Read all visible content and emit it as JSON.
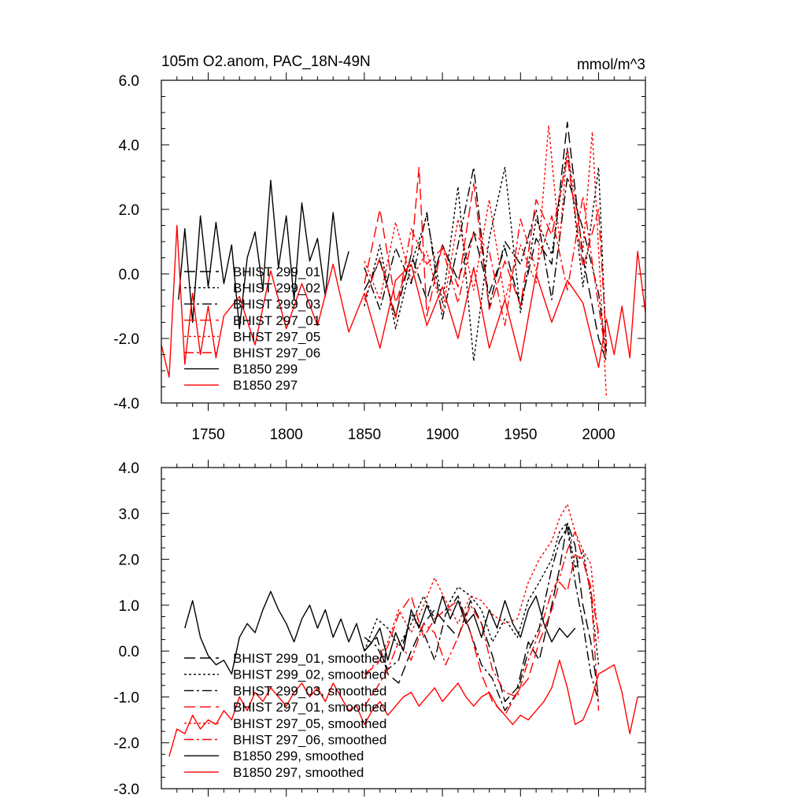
{
  "chart_data": [
    {
      "type": "line",
      "title": "105m O2.anom, PAC_18N-49N",
      "units": "mmol/m^3",
      "xlim": [
        1720,
        2030
      ],
      "ylim": [
        -4.0,
        6.0
      ],
      "xticks": [
        1750,
        1800,
        1850,
        1900,
        1950,
        2000
      ],
      "xtick_labels": [
        "1750",
        "1800",
        "1850",
        "1900",
        "1950",
        "2000"
      ],
      "yticks": [
        -4.0,
        -2.0,
        0.0,
        2.0,
        4.0,
        6.0
      ],
      "ytick_labels": [
        "-4.0",
        "-2.0",
        "0.0",
        "2.0",
        "4.0",
        "6.0"
      ],
      "legend_position": "center-left",
      "series": [
        {
          "name": "BHIST 299_01",
          "color": "#000000",
          "dash": "longdash",
          "x": [
            1850,
            1860,
            1870,
            1880,
            1890,
            1900,
            1910,
            1920,
            1930,
            1940,
            1950,
            1960,
            1970,
            1980,
            1990,
            2000,
            2005
          ],
          "values": [
            -0.5,
            0.4,
            -1.3,
            0.6,
            -0.8,
            0.9,
            -0.2,
            1.3,
            -0.6,
            0.8,
            -1.0,
            1.1,
            0.3,
            4.7,
            0.5,
            -2.0,
            -2.7
          ]
        },
        {
          "name": "BHIST 299_02",
          "color": "#000000",
          "dash": "dot",
          "x": [
            1850,
            1860,
            1870,
            1880,
            1890,
            1900,
            1910,
            1920,
            1930,
            1940,
            1950,
            1960,
            1970,
            1980,
            1990,
            2000,
            2005
          ],
          "values": [
            -1.0,
            0.9,
            -1.7,
            0.3,
            1.8,
            -0.9,
            2.7,
            -2.7,
            1.1,
            3.3,
            -1.2,
            1.7,
            0.6,
            3.9,
            -0.4,
            3.3,
            -2.4
          ]
        },
        {
          "name": "BHIST 299_03",
          "color": "#000000",
          "dash": "dashdot",
          "x": [
            1850,
            1860,
            1870,
            1880,
            1890,
            1900,
            1910,
            1920,
            1930,
            1940,
            1950,
            1960,
            1970,
            1980,
            1990,
            2000,
            2005
          ],
          "values": [
            0.2,
            -1.1,
            0.8,
            -0.3,
            1.9,
            -1.4,
            0.9,
            3.3,
            -1.0,
            1.0,
            0.3,
            2.0,
            -0.8,
            3.0,
            1.4,
            -0.6,
            -2.5
          ]
        },
        {
          "name": "BHIST 297_01",
          "color": "#ff0000",
          "dash": "longdash",
          "x": [
            1850,
            1860,
            1870,
            1880,
            1885,
            1890,
            1900,
            1910,
            1920,
            1930,
            1940,
            1950,
            1960,
            1970,
            1980,
            1990,
            2000,
            2005
          ],
          "values": [
            -0.3,
            2.0,
            -0.9,
            0.5,
            3.3,
            -1.3,
            0.9,
            -0.4,
            2.8,
            -1.1,
            0.4,
            -1.0,
            2.3,
            1.2,
            3.6,
            0.2,
            2.0,
            -2.2
          ]
        },
        {
          "name": "BHIST 297_05",
          "color": "#ff0000",
          "dash": "dot",
          "x": [
            1850,
            1860,
            1870,
            1880,
            1890,
            1900,
            1910,
            1920,
            1930,
            1940,
            1950,
            1960,
            1968,
            1975,
            1980,
            1990,
            1996,
            2005
          ],
          "values": [
            0.4,
            -0.8,
            1.6,
            -0.2,
            0.7,
            -1.2,
            1.7,
            -0.5,
            2.3,
            -0.8,
            0.9,
            -0.3,
            4.6,
            1.0,
            3.9,
            0.7,
            4.4,
            -3.8
          ]
        },
        {
          "name": "BHIST 297_06",
          "color": "#ff0000",
          "dash": "dashdot",
          "x": [
            1850,
            1860,
            1870,
            1880,
            1890,
            1900,
            1910,
            1920,
            1930,
            1940,
            1950,
            1960,
            1970,
            1980,
            1990,
            2000,
            2005
          ],
          "values": [
            -0.8,
            0.5,
            -1.4,
            1.4,
            0.3,
            0.8,
            -0.9,
            1.3,
            0.7,
            -1.6,
            1.7,
            0.1,
            1.8,
            -0.5,
            2.4,
            -1.0,
            -2.6
          ]
        },
        {
          "name": "B1850 299",
          "color": "#000000",
          "dash": "solid",
          "x": [
            1731,
            1735,
            1740,
            1745,
            1750,
            1755,
            1760,
            1765,
            1770,
            1775,
            1780,
            1785,
            1790,
            1795,
            1800,
            1805,
            1810,
            1815,
            1820,
            1825,
            1830,
            1835,
            1840
          ],
          "values": [
            -0.8,
            1.4,
            -1.5,
            1.8,
            -0.4,
            1.6,
            -0.3,
            0.9,
            -1.7,
            0.5,
            1.3,
            -0.5,
            2.9,
            0.2,
            1.8,
            -0.8,
            2.2,
            0.4,
            1.1,
            -0.7,
            1.9,
            -0.2,
            0.7
          ]
        },
        {
          "name": "B1850 297",
          "color": "#ff0000",
          "dash": "solid",
          "x": [
            1720,
            1725,
            1730,
            1735,
            1740,
            1745,
            1750,
            1755,
            1760,
            1770,
            1780,
            1790,
            1800,
            1810,
            1820,
            1830,
            1840,
            1850,
            1860,
            1870,
            1880,
            1890,
            1900,
            1910,
            1920,
            1930,
            1940,
            1950,
            1960,
            1970,
            1980,
            1990,
            2000,
            2005,
            2010,
            2015,
            2020,
            2025,
            2030
          ],
          "values": [
            -2.2,
            -3.2,
            1.5,
            -2.8,
            -0.6,
            -2.5,
            -1.0,
            -2.6,
            -1.3,
            -0.7,
            -2.2,
            0.1,
            -1.7,
            -0.3,
            -1.6,
            0.3,
            -1.8,
            -0.6,
            -2.3,
            -0.2,
            0.3,
            -1.6,
            -0.4,
            -2.0,
            0.2,
            -2.3,
            -0.8,
            -2.7,
            0.0,
            -1.5,
            -0.2,
            -0.9,
            -2.9,
            -1.4,
            -2.5,
            -1.0,
            -2.6,
            0.7,
            -1.2
          ]
        }
      ]
    },
    {
      "type": "line",
      "title": "",
      "xlim": [
        1720,
        2030
      ],
      "ylim": [
        -3.0,
        4.0
      ],
      "yticks": [
        -3.0,
        -2.0,
        -1.0,
        0.0,
        1.0,
        2.0,
        3.0,
        4.0
      ],
      "ytick_labels": [
        "-3.0",
        "-2.0",
        "-1.0",
        "0.0",
        "1.0",
        "2.0",
        "3.0",
        "4.0"
      ],
      "xticks": [
        1750,
        1800,
        1850,
        1900,
        1950,
        2000
      ],
      "legend_position": "bottom-left",
      "series": [
        {
          "name": "BHIST 299_01, smoothed",
          "color": "#000000",
          "dash": "longdash",
          "x": [
            1850,
            1858,
            1865,
            1872,
            1880,
            1888,
            1895,
            1902,
            1910,
            1918,
            1925,
            1932,
            1940,
            1948,
            1955,
            1962,
            1970,
            1975,
            1980,
            1985,
            1990,
            1995,
            2000
          ],
          "values": [
            0.0,
            0.3,
            -0.5,
            -0.7,
            0.0,
            0.6,
            0.9,
            0.6,
            0.3,
            1.1,
            0.6,
            -0.1,
            -1.1,
            -0.8,
            0.2,
            -0.2,
            1.0,
            1.8,
            2.8,
            2.3,
            1.0,
            0.2,
            -1.0
          ]
        },
        {
          "name": "BHIST 299_02, smoothed",
          "color": "#000000",
          "dash": "dot",
          "x": [
            1850,
            1858,
            1865,
            1872,
            1880,
            1888,
            1895,
            1902,
            1910,
            1918,
            1925,
            1932,
            1940,
            1948,
            1955,
            1962,
            1970,
            1975,
            1980,
            1985,
            1990,
            1995,
            2000
          ],
          "values": [
            0.0,
            0.7,
            0.5,
            0.1,
            0.6,
            1.2,
            0.7,
            0.9,
            1.4,
            1.2,
            0.9,
            0.2,
            0.7,
            0.3,
            1.1,
            1.5,
            2.0,
            2.6,
            2.8,
            1.8,
            2.2,
            1.2,
            -0.3
          ]
        },
        {
          "name": "BHIST 299_03, smoothed",
          "color": "#000000",
          "dash": "dashdot",
          "x": [
            1850,
            1858,
            1865,
            1872,
            1880,
            1888,
            1895,
            1902,
            1910,
            1918,
            1925,
            1932,
            1940,
            1948,
            1955,
            1962,
            1970,
            1975,
            1980,
            1985,
            1990,
            1995,
            2000
          ],
          "values": [
            0.3,
            0.1,
            -0.4,
            -0.2,
            0.8,
            0.4,
            -0.2,
            0.8,
            1.2,
            0.4,
            -0.3,
            -0.6,
            -1.3,
            -0.9,
            0.0,
            0.5,
            1.8,
            2.4,
            2.7,
            1.5,
            0.6,
            -0.5,
            -1.1
          ]
        },
        {
          "name": "BHIST 297_01, smoothed",
          "color": "#ff0000",
          "dash": "longdash",
          "x": [
            1850,
            1858,
            1865,
            1872,
            1880,
            1888,
            1895,
            1902,
            1910,
            1918,
            1925,
            1932,
            1940,
            1948,
            1955,
            1962,
            1970,
            1975,
            1980,
            1985,
            1990,
            1995,
            2000
          ],
          "values": [
            -0.5,
            -0.3,
            0.1,
            0.8,
            1.2,
            0.3,
            0.7,
            0.9,
            1.1,
            0.4,
            -0.5,
            -1.1,
            -1.4,
            -0.9,
            -0.6,
            0.2,
            0.9,
            1.5,
            1.3,
            2.1,
            2.0,
            1.3,
            0.4
          ]
        },
        {
          "name": "BHIST 297_05, smoothed",
          "color": "#ff0000",
          "dash": "dot",
          "x": [
            1850,
            1858,
            1865,
            1872,
            1880,
            1888,
            1895,
            1902,
            1910,
            1918,
            1925,
            1932,
            1940,
            1948,
            1955,
            1962,
            1970,
            1975,
            1980,
            1985,
            1990,
            1995,
            2000
          ],
          "values": [
            -0.6,
            -0.2,
            0.2,
            0.9,
            0.4,
            1.0,
            1.6,
            1.1,
            0.6,
            1.2,
            1.1,
            0.8,
            0.6,
            0.7,
            1.5,
            2.0,
            2.4,
            2.9,
            3.2,
            2.6,
            2.2,
            1.9,
            0.2
          ]
        },
        {
          "name": "BHIST 297_06, smoothed",
          "color": "#ff0000",
          "dash": "dashdot",
          "x": [
            1850,
            1858,
            1865,
            1872,
            1880,
            1888,
            1895,
            1902,
            1910,
            1918,
            1925,
            1932,
            1940,
            1948,
            1955,
            1962,
            1970,
            1975,
            1980,
            1985,
            1990,
            1995,
            2000
          ],
          "values": [
            -1.2,
            -0.8,
            -0.4,
            0.2,
            -0.2,
            0.6,
            0.4,
            -0.3,
            0.3,
            1.0,
            0.6,
            -0.4,
            -0.9,
            -1.0,
            -0.2,
            0.4,
            1.3,
            1.6,
            2.2,
            2.6,
            2.0,
            1.4,
            -1.3
          ]
        },
        {
          "name": "B1850 299, smoothed",
          "color": "#000000",
          "dash": "solid",
          "x": [
            1735,
            1740,
            1745,
            1750,
            1755,
            1760,
            1765,
            1770,
            1775,
            1780,
            1785,
            1790,
            1795,
            1800,
            1805,
            1810,
            1815,
            1820,
            1825,
            1830,
            1835,
            1840,
            1845,
            1850,
            1855,
            1860,
            1865,
            1870,
            1875,
            1880,
            1885,
            1890,
            1895,
            1900,
            1905,
            1910,
            1915,
            1920,
            1925,
            1930,
            1935,
            1940,
            1945,
            1950,
            1955,
            1960,
            1965,
            1970,
            1975,
            1980,
            1985
          ],
          "values": [
            0.5,
            1.1,
            0.3,
            -0.1,
            -0.3,
            -0.2,
            -0.5,
            0.3,
            0.6,
            0.4,
            0.9,
            1.3,
            0.9,
            0.6,
            0.2,
            0.7,
            1.0,
            0.5,
            0.9,
            0.3,
            0.7,
            0.2,
            0.6,
            0.0,
            0.2,
            0.5,
            -0.2,
            0.4,
            0.0,
            0.9,
            0.5,
            1.0,
            0.6,
            1.2,
            0.7,
            1.1,
            0.6,
            0.8,
            0.3,
            0.9,
            0.5,
            1.1,
            0.6,
            0.3,
            0.9,
            1.2,
            0.6,
            0.2,
            0.5,
            0.3,
            0.5
          ]
        },
        {
          "name": "B1850 297, smoothed",
          "color": "#ff0000",
          "dash": "solid",
          "x": [
            1725,
            1730,
            1735,
            1740,
            1745,
            1750,
            1755,
            1760,
            1765,
            1770,
            1775,
            1780,
            1785,
            1790,
            1795,
            1800,
            1805,
            1810,
            1815,
            1820,
            1825,
            1830,
            1835,
            1840,
            1845,
            1850,
            1855,
            1860,
            1865,
            1870,
            1875,
            1880,
            1885,
            1890,
            1895,
            1900,
            1905,
            1910,
            1915,
            1920,
            1925,
            1930,
            1935,
            1940,
            1945,
            1950,
            1955,
            1960,
            1965,
            1970,
            1975,
            1980,
            1985,
            1990,
            1995,
            2000,
            2005,
            2010,
            2015,
            2020,
            2025
          ],
          "values": [
            -2.3,
            -1.7,
            -1.8,
            -1.4,
            -1.7,
            -1.5,
            -1.6,
            -1.3,
            -1.5,
            -1.0,
            -1.3,
            -0.9,
            -1.1,
            -0.8,
            -1.0,
            -1.2,
            -0.9,
            -0.7,
            -1.0,
            -0.8,
            -1.1,
            -0.7,
            -1.0,
            -1.3,
            -1.2,
            -1.6,
            -1.3,
            -1.1,
            -1.4,
            -1.2,
            -1.0,
            -0.9,
            -1.2,
            -1.0,
            -0.8,
            -1.1,
            -0.9,
            -0.7,
            -1.0,
            -1.2,
            -1.0,
            -0.9,
            -1.2,
            -1.4,
            -1.6,
            -1.4,
            -1.5,
            -1.3,
            -1.1,
            -0.8,
            -0.2,
            -0.8,
            -1.6,
            -1.5,
            -1.1,
            -0.5,
            -0.4,
            -0.3,
            -0.9,
            -1.8,
            -1.0
          ]
        }
      ]
    }
  ]
}
